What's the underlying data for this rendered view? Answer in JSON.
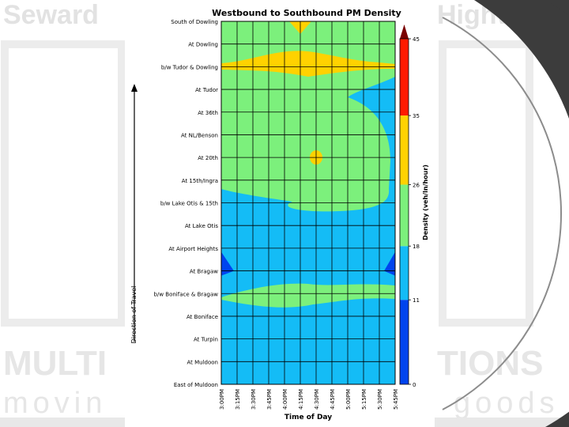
{
  "slide": {
    "bg_title_left": "Seward",
    "bg_title_right": "Highway",
    "bg_bottom_left": "MULTI",
    "bg_bottom_right": "TIONS",
    "bg_tag_left": "movin",
    "bg_tag_right": "goods"
  },
  "chart_data": {
    "type": "heatmap",
    "title": "Westbound to Southbound PM Density",
    "xlabel": "Time of Day",
    "ylabel": "Direction of Travel",
    "colorbar_label": "Density (veh/ln/hour)",
    "x": [
      "3:00PM",
      "3:15PM",
      "3:30PM",
      "3:45PM",
      "4:00PM",
      "4:15PM",
      "4:30PM",
      "4:45PM",
      "5:00PM",
      "5:15PM",
      "5:30PM",
      "5:45PM"
    ],
    "y_top_to_bottom": [
      "South of Dowling",
      "At Dowling",
      "b/w Tudor & Dowling",
      "At Tudor",
      "At 36th",
      "At NL/Benson",
      "At 20th",
      "At 15th/Ingra",
      "b/w Lake Otis & 15th",
      "At Lake Otis",
      "At Airport Heights",
      "At Bragaw",
      "b/w Boniface & Bragaw",
      "At Boniface",
      "At Turpin",
      "At Muldoon",
      "East of Muldoon"
    ],
    "colorbar_ticks": [
      0,
      11,
      18,
      26,
      35,
      45
    ],
    "colorbar_tick_labels": [
      "0",
      "11",
      "18",
      "26",
      "35",
      "45"
    ],
    "levels": [
      {
        "from": 0,
        "to": 11,
        "color": "#0044ee"
      },
      {
        "from": 11,
        "to": 18,
        "color": "#14bcf6"
      },
      {
        "from": 18,
        "to": 26,
        "color": "#7cf07c"
      },
      {
        "from": 26,
        "to": 35,
        "color": "#ffd200"
      },
      {
        "from": 35,
        "to": 45,
        "color": "#ff1a00"
      },
      {
        "from": 45,
        "to": 50,
        "color": "#7a0000"
      }
    ],
    "regions": {
      "background_level_range": [
        11,
        18
      ],
      "upper_band_level_range": [
        18,
        26
      ],
      "upper_band_rows": [
        "At Dowling",
        "b/w Lake Otis & 15th"
      ],
      "lower_band_level_range": [
        18,
        26
      ],
      "lower_band_rows": [
        "b/w Boniface & Bragaw"
      ],
      "yellow_band_rows": [
        "b/w Tudor & Dowling"
      ],
      "yellow_spot": {
        "time": "4:30PM",
        "row": "At 20th"
      },
      "yellow_spot_top": {
        "time": "4:15PM",
        "row": "South of Dowling"
      },
      "blue_corners": [
        "3:00PM @ At Bragaw",
        "5:45PM @ At Bragaw"
      ]
    }
  }
}
